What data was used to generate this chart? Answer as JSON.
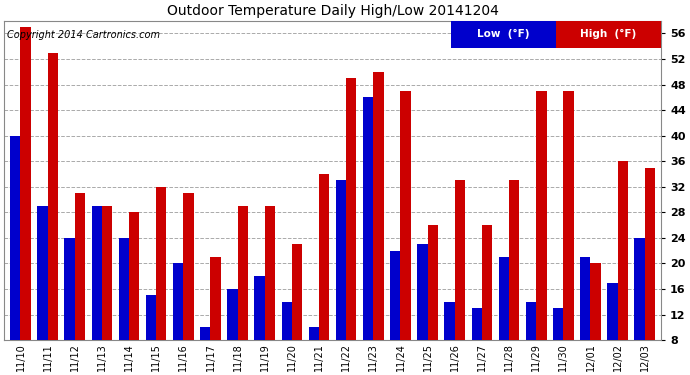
{
  "title": "Outdoor Temperature Daily High/Low 20141204",
  "copyright": "Copyright 2014 Cartronics.com",
  "dates": [
    "11/10",
    "11/11",
    "11/12",
    "11/13",
    "11/14",
    "11/15",
    "11/16",
    "11/17",
    "11/18",
    "11/19",
    "11/20",
    "11/21",
    "11/22",
    "11/23",
    "11/24",
    "11/25",
    "11/26",
    "11/27",
    "11/28",
    "11/29",
    "11/30",
    "12/01",
    "12/02",
    "12/03"
  ],
  "low": [
    40,
    29,
    24,
    29,
    24,
    15,
    20,
    10,
    16,
    18,
    14,
    10,
    33,
    46,
    22,
    23,
    14,
    13,
    21,
    14,
    13,
    21,
    17,
    24
  ],
  "high": [
    57,
    53,
    31,
    29,
    28,
    32,
    31,
    21,
    29,
    29,
    23,
    34,
    49,
    50,
    47,
    26,
    33,
    26,
    33,
    47,
    47,
    20,
    36,
    35
  ],
  "low_color": "#0000cc",
  "high_color": "#cc0000",
  "bg_color": "#ffffff",
  "grid_color": "#aaaaaa",
  "ylim": [
    8.0,
    58.0
  ],
  "yticks": [
    8.0,
    12.0,
    16.0,
    20.0,
    24.0,
    28.0,
    32.0,
    36.0,
    40.0,
    44.0,
    48.0,
    52.0,
    56.0
  ],
  "legend_low_label": "Low  (°F)",
  "legend_high_label": "High  (°F)",
  "legend_low_color": "#0000cc",
  "legend_high_color": "#cc0000"
}
